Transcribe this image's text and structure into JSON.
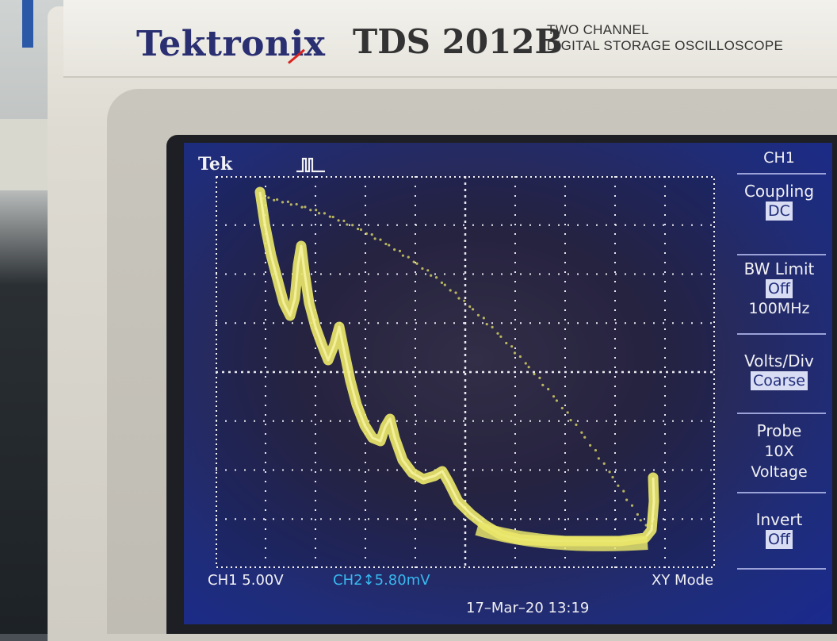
{
  "device": {
    "brand": "Tektronix",
    "model": "TDS 2012B",
    "model_sub_line1": "TWO CHANNEL",
    "model_sub_line2": "DIGITAL STORAGE OSCILLOSCOPE"
  },
  "screen": {
    "tek_label": "Tek",
    "status": {
      "ch1": "CH1  5.00V",
      "ch2": "CH2↕5.80mV",
      "mode": "XY Mode",
      "datetime": "17–Mar–20 13:19"
    },
    "trace_color": "#e9e66a",
    "grid_color": "#f4f4f8",
    "menu": {
      "title": "CH1",
      "items": [
        {
          "label": "Coupling",
          "value": "DC",
          "value_boxed": true
        },
        {
          "label": "BW Limit",
          "value": "Off",
          "value_boxed": true,
          "extra": "100MHz"
        },
        {
          "label": "Volts/Div",
          "value": "Coarse",
          "value_boxed": true
        },
        {
          "label": "Probe",
          "value": "10X",
          "value_boxed": false,
          "extra": "Voltage"
        },
        {
          "label": "Invert",
          "value": "Off",
          "value_boxed": true
        }
      ]
    }
  }
}
